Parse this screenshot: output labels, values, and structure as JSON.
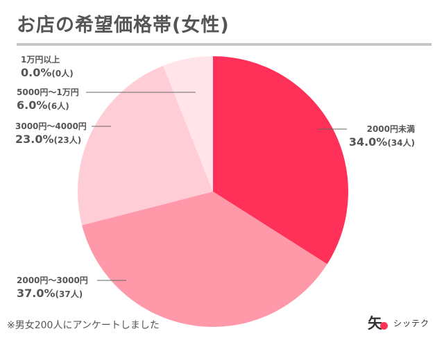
{
  "title": "お店の希望価格帯(女性)",
  "footnote": "※男女200人にアンケートしました",
  "logo": {
    "mark": "矢",
    "text": "シッテク"
  },
  "chart_data": {
    "type": "pie",
    "slices": [
      {
        "label": "2000円未満",
        "value": 34.0,
        "percent_text": "34.0%",
        "count_text": "(34人)",
        "color": "#ff3158"
      },
      {
        "label": "2000円〜3000円",
        "value": 37.0,
        "percent_text": "37.0%",
        "count_text": "(37人)",
        "color": "#ff99a9"
      },
      {
        "label": "3000円〜4000円",
        "value": 23.0,
        "percent_text": "23.0%",
        "count_text": "(23人)",
        "color": "#ffcdd5"
      },
      {
        "label": "5000円〜1万円",
        "value": 6.0,
        "percent_text": "6.0%",
        "count_text": "(6人)",
        "color": "#ffe5e9"
      },
      {
        "label": "1万円以上",
        "value": 0.0,
        "percent_text": "0.0%",
        "count_text": "(0人)",
        "color": "#fff2f4"
      }
    ],
    "start_angle_deg": 0,
    "direction": "clockwise",
    "legend": "none"
  }
}
